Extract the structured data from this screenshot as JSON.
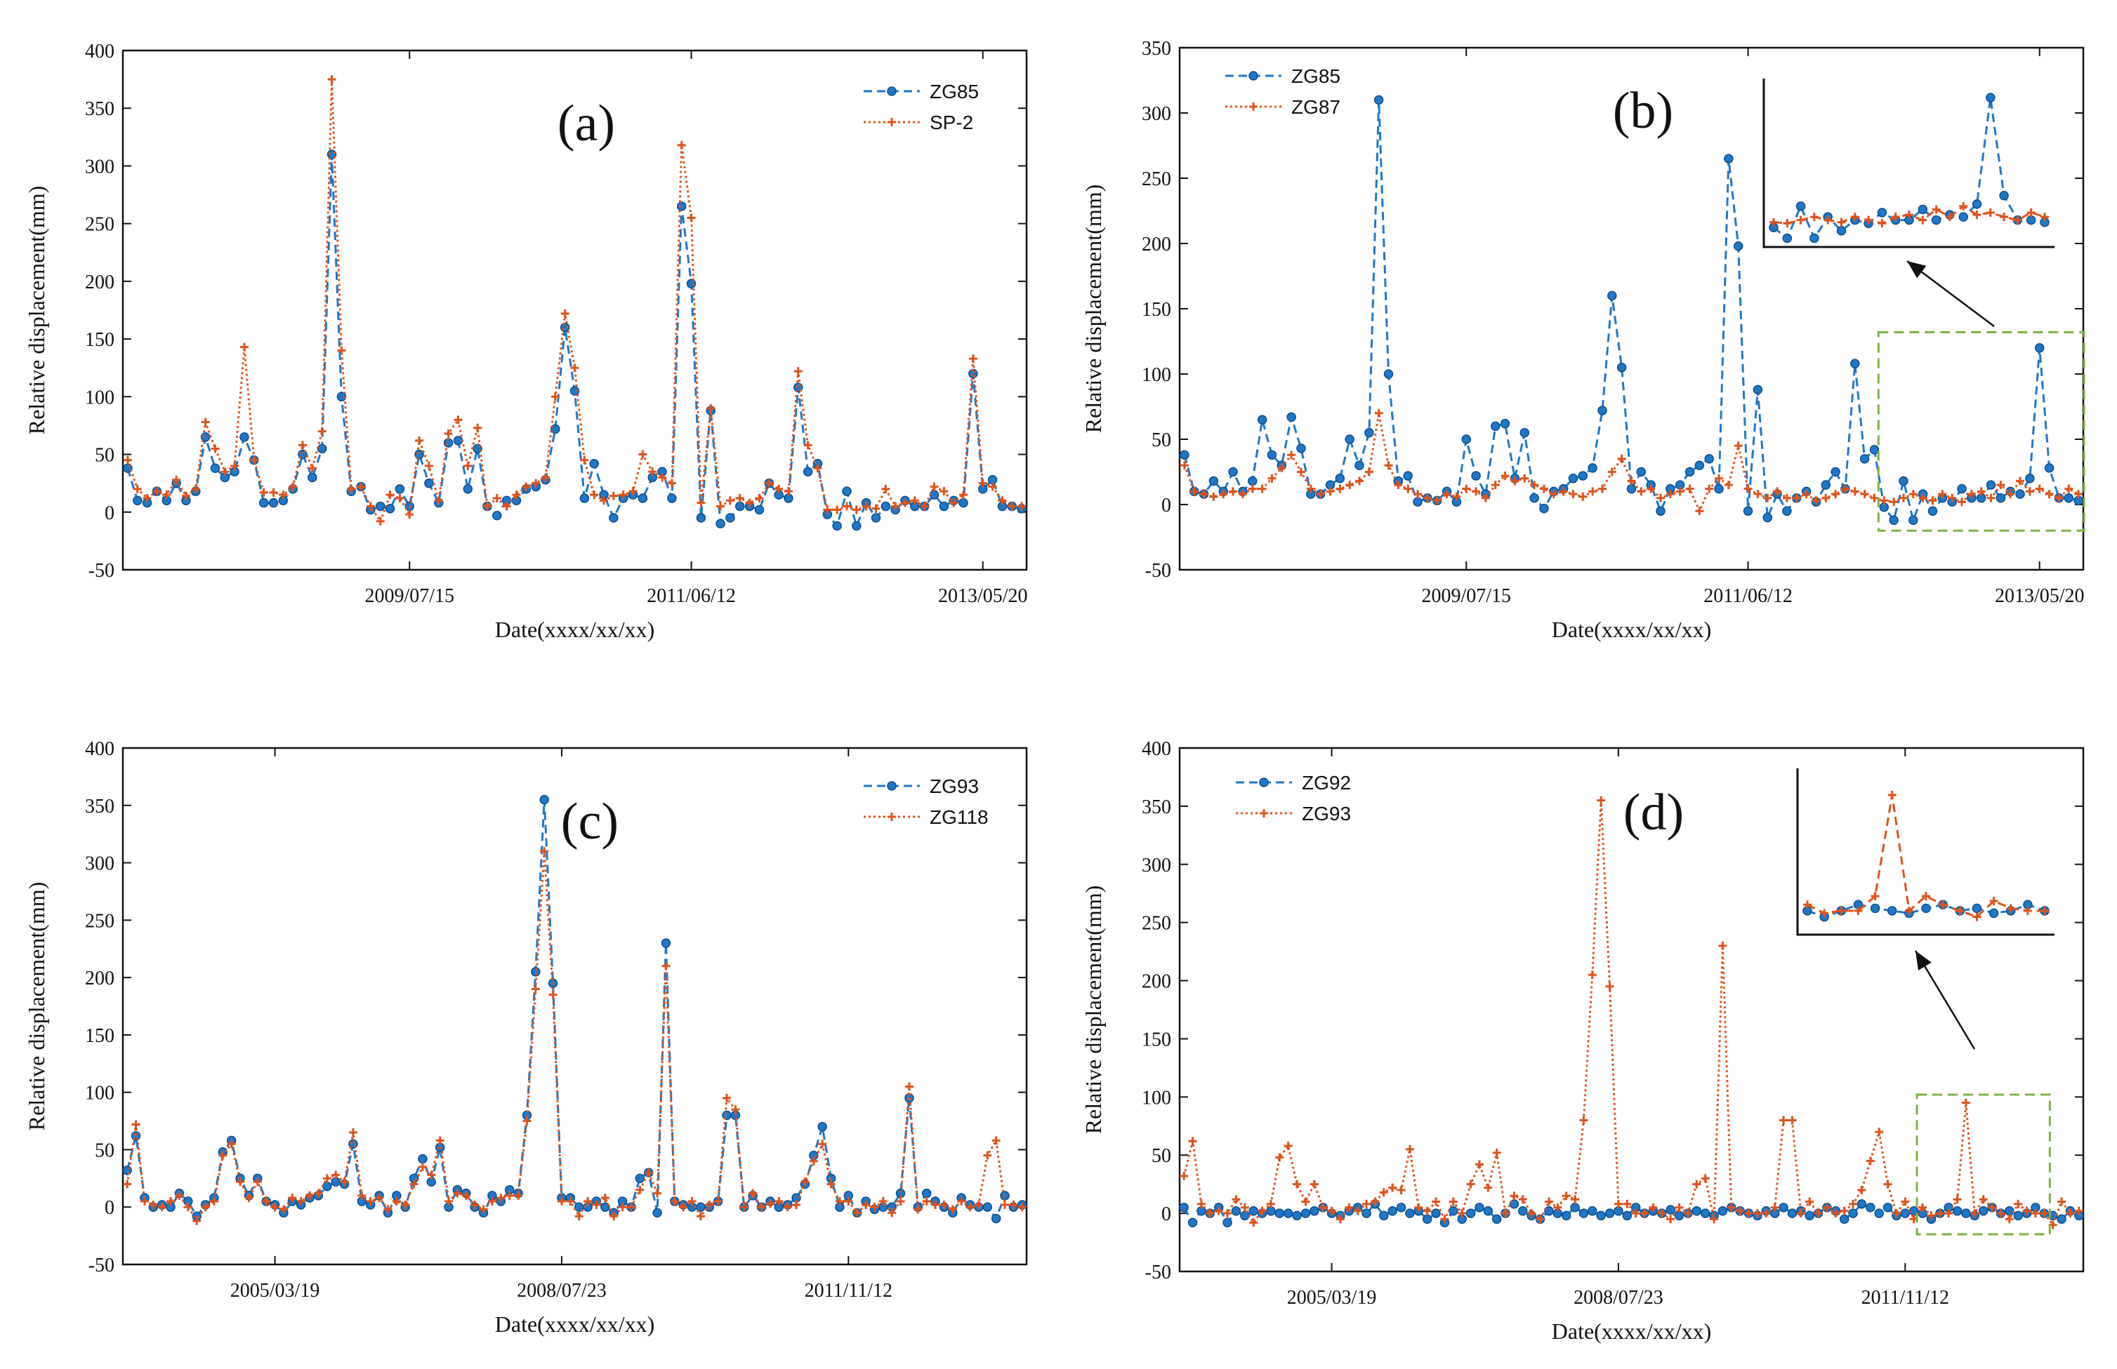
{
  "colors": {
    "blue": "#1f77c9",
    "orange": "#e0521a",
    "frame": "#111111",
    "zoom": "#7cb342"
  },
  "chart_data": [
    {
      "id": "a",
      "type": "line",
      "panel_label": "(a)",
      "xlabel": "Date(xxxx/xx/xx)",
      "ylabel": "Relative displacement(mm)",
      "ylim": [
        -50,
        400
      ],
      "yticks": [
        -50,
        0,
        50,
        100,
        150,
        200,
        250,
        300,
        350,
        400
      ],
      "xtick_labels": [
        {
          "label": "2009/07/15",
          "index": 29
        },
        {
          "label": "2011/06/12",
          "index": 58
        },
        {
          "label": "2013/05/20",
          "index": 88
        }
      ],
      "legend_position": "top-right",
      "grid": false,
      "series": [
        {
          "name": "ZG85",
          "style": "dashed-circle",
          "color": "blue",
          "values": [
            38,
            10,
            8,
            18,
            10,
            25,
            10,
            18,
            65,
            38,
            30,
            35,
            65,
            45,
            8,
            8,
            10,
            20,
            50,
            30,
            55,
            310,
            100,
            18,
            22,
            2,
            5,
            3,
            20,
            5,
            50,
            25,
            8,
            60,
            62,
            20,
            55,
            5,
            -3,
            10,
            10,
            20,
            22,
            28,
            72,
            160,
            105,
            12,
            42,
            15,
            -5,
            12,
            15,
            12,
            30,
            35,
            12,
            265,
            198,
            -5,
            88,
            -10,
            -5,
            5,
            5,
            2,
            25,
            15,
            12,
            108,
            35,
            42,
            -2,
            -12,
            18,
            -12,
            8,
            -5,
            5,
            2,
            10,
            5,
            5,
            15,
            5,
            10,
            8,
            120,
            20,
            28,
            5,
            5,
            3
          ]
        },
        {
          "name": "SP-2",
          "style": "dotted-plus",
          "color": "orange",
          "values": [
            45,
            20,
            12,
            18,
            15,
            28,
            14,
            20,
            78,
            55,
            35,
            40,
            143,
            45,
            17,
            17,
            15,
            22,
            58,
            38,
            70,
            375,
            140,
            20,
            22,
            5,
            -8,
            15,
            12,
            -2,
            62,
            40,
            10,
            68,
            80,
            40,
            73,
            5,
            12,
            5,
            15,
            22,
            25,
            30,
            100,
            172,
            125,
            45,
            15,
            10,
            14,
            15,
            18,
            50,
            35,
            30,
            25,
            318,
            255,
            8,
            90,
            5,
            10,
            12,
            8,
            12,
            25,
            20,
            18,
            122,
            58,
            38,
            2,
            2,
            5,
            2,
            5,
            3,
            20,
            5,
            8,
            10,
            5,
            22,
            18,
            8,
            15,
            133,
            25,
            22,
            10,
            5,
            5
          ]
        }
      ]
    },
    {
      "id": "b",
      "type": "line",
      "panel_label": "(b)",
      "xlabel": "Date(xxxx/xx/xx)",
      "ylabel": "Relative displacement(mm)",
      "ylim": [
        -50,
        350
      ],
      "yticks": [
        -50,
        0,
        50,
        100,
        150,
        200,
        250,
        300,
        350
      ],
      "xtick_labels": [
        {
          "label": "2009/07/15",
          "index": 29
        },
        {
          "label": "2011/06/12",
          "index": 58
        },
        {
          "label": "2013/05/20",
          "index": 88
        }
      ],
      "legend_position": "top-left",
      "grid": false,
      "has_zoom_inset": true,
      "series": [
        {
          "name": "ZG85",
          "style": "dashed-circle",
          "color": "blue",
          "values": [
            38,
            10,
            8,
            18,
            10,
            25,
            10,
            18,
            65,
            38,
            30,
            67,
            43,
            8,
            8,
            15,
            20,
            50,
            30,
            55,
            310,
            100,
            18,
            22,
            2,
            5,
            3,
            10,
            2,
            50,
            22,
            8,
            60,
            62,
            20,
            55,
            5,
            -3,
            10,
            12,
            20,
            22,
            28,
            72,
            160,
            105,
            12,
            25,
            15,
            -5,
            12,
            15,
            25,
            30,
            35,
            12,
            265,
            198,
            -5,
            88,
            -10,
            8,
            -5,
            5,
            10,
            2,
            15,
            25,
            12,
            108,
            35,
            42,
            -2,
            -12,
            18,
            -12,
            8,
            -5,
            5,
            2,
            12,
            5,
            5,
            15,
            5,
            10,
            8,
            20,
            120,
            28,
            5,
            5,
            3
          ]
        },
        {
          "name": "ZG87",
          "style": "dotted-plus",
          "color": "orange",
          "values": [
            30,
            10,
            8,
            6,
            8,
            10,
            8,
            12,
            12,
            20,
            28,
            38,
            25,
            12,
            8,
            10,
            12,
            15,
            18,
            25,
            70,
            30,
            15,
            12,
            8,
            5,
            3,
            8,
            6,
            12,
            10,
            5,
            15,
            22,
            18,
            20,
            15,
            12,
            8,
            10,
            8,
            6,
            10,
            12,
            25,
            35,
            18,
            10,
            12,
            5,
            8,
            10,
            12,
            -5,
            12,
            20,
            15,
            45,
            12,
            8,
            5,
            10,
            5,
            5,
            8,
            3,
            5,
            8,
            12,
            10,
            8,
            5,
            3,
            2,
            5,
            8,
            5,
            3,
            8,
            5,
            2,
            8,
            10,
            5,
            15,
            8,
            18,
            10,
            12,
            8,
            5,
            12,
            8
          ]
        }
      ]
    },
    {
      "id": "c",
      "type": "line",
      "panel_label": "(c)",
      "xlabel": "Date(xxxx/xx/xx)",
      "ylabel": "Relative displacement(mm)",
      "ylim": [
        -50,
        400
      ],
      "yticks": [
        -50,
        0,
        50,
        100,
        150,
        200,
        250,
        300,
        350,
        400
      ],
      "xtick_labels": [
        {
          "label": "2005/03/19",
          "index": 17
        },
        {
          "label": "2008/07/23",
          "index": 50
        },
        {
          "label": "2011/11/12",
          "index": 83
        }
      ],
      "legend_position": "top-right",
      "grid": false,
      "series": [
        {
          "name": "ZG93",
          "style": "dashed-circle",
          "color": "blue",
          "values": [
            32,
            62,
            8,
            0,
            2,
            0,
            12,
            5,
            -8,
            2,
            8,
            48,
            58,
            25,
            10,
            25,
            5,
            2,
            -5,
            5,
            2,
            8,
            10,
            18,
            22,
            20,
            55,
            5,
            2,
            10,
            -5,
            10,
            0,
            25,
            42,
            22,
            52,
            0,
            15,
            12,
            0,
            -5,
            10,
            5,
            15,
            12,
            80,
            205,
            355,
            195,
            8,
            8,
            0,
            0,
            5,
            0,
            -5,
            5,
            0,
            25,
            30,
            -5,
            230,
            5,
            2,
            0,
            0,
            0,
            5,
            80,
            80,
            0,
            10,
            0,
            5,
            0,
            2,
            8,
            20,
            45,
            70,
            25,
            0,
            10,
            -5,
            5,
            -2,
            0,
            0,
            12,
            95,
            0,
            12,
            5,
            0,
            -5,
            8,
            2,
            0,
            0,
            -10,
            10,
            0,
            2
          ]
        },
        {
          "name": "ZG118",
          "style": "dotted-plus",
          "color": "orange",
          "values": [
            20,
            72,
            5,
            2,
            0,
            5,
            10,
            0,
            -12,
            0,
            5,
            45,
            55,
            22,
            8,
            22,
            5,
            0,
            -2,
            8,
            5,
            10,
            12,
            25,
            28,
            22,
            65,
            10,
            5,
            8,
            -2,
            5,
            2,
            20,
            35,
            28,
            58,
            5,
            12,
            10,
            2,
            -2,
            5,
            8,
            10,
            10,
            75,
            190,
            310,
            185,
            5,
            5,
            -8,
            5,
            2,
            8,
            -8,
            0,
            0,
            15,
            30,
            12,
            210,
            5,
            0,
            5,
            -8,
            2,
            5,
            95,
            85,
            0,
            12,
            0,
            3,
            5,
            0,
            2,
            22,
            40,
            55,
            20,
            5,
            5,
            -5,
            2,
            0,
            5,
            -5,
            5,
            105,
            -2,
            5,
            2,
            2,
            -2,
            5,
            0,
            2,
            45,
            58,
            2,
            2,
            0
          ]
        }
      ]
    },
    {
      "id": "d",
      "type": "line",
      "panel_label": "(d)",
      "xlabel": "Date(xxxx/xx/xx)",
      "ylabel": "Relative displacement(mm)",
      "ylim": [
        -50,
        400
      ],
      "yticks": [
        -50,
        0,
        50,
        100,
        150,
        200,
        250,
        300,
        350,
        400
      ],
      "xtick_labels": [
        {
          "label": "2005/03/19",
          "index": 17
        },
        {
          "label": "2008/07/23",
          "index": 50
        },
        {
          "label": "2011/11/12",
          "index": 83
        }
      ],
      "legend_position": "top-left",
      "grid": false,
      "has_zoom_inset": true,
      "series": [
        {
          "name": "ZG92",
          "style": "dashed-circle",
          "color": "blue",
          "values": [
            5,
            -8,
            2,
            0,
            5,
            -8,
            2,
            -2,
            2,
            0,
            2,
            0,
            0,
            -2,
            0,
            2,
            5,
            0,
            -2,
            2,
            5,
            0,
            8,
            -2,
            2,
            5,
            0,
            2,
            -5,
            0,
            -8,
            2,
            -5,
            0,
            5,
            2,
            -5,
            0,
            8,
            2,
            -2,
            -5,
            2,
            0,
            -2,
            5,
            0,
            2,
            -2,
            0,
            2,
            -2,
            5,
            0,
            2,
            0,
            3,
            -2,
            0,
            2,
            0,
            -2,
            2,
            5,
            2,
            0,
            -2,
            2,
            0,
            5,
            0,
            2,
            -2,
            0,
            5,
            2,
            -5,
            0,
            8,
            5,
            0,
            5,
            -2,
            0,
            2,
            0,
            -5,
            0,
            5,
            2,
            0,
            -2,
            2,
            5,
            0,
            2,
            -2,
            0,
            5,
            0,
            -2,
            -5,
            2,
            -2
          ]
        },
        {
          "name": "ZG93",
          "style": "dotted-plus",
          "color": "orange",
          "values": [
            32,
            62,
            8,
            0,
            2,
            0,
            12,
            5,
            -8,
            2,
            8,
            48,
            58,
            25,
            10,
            25,
            5,
            2,
            -5,
            5,
            2,
            8,
            10,
            18,
            22,
            20,
            55,
            5,
            2,
            10,
            -5,
            10,
            0,
            25,
            42,
            22,
            52,
            0,
            15,
            12,
            0,
            -5,
            10,
            5,
            15,
            12,
            80,
            205,
            355,
            195,
            8,
            8,
            0,
            0,
            5,
            0,
            -5,
            5,
            0,
            25,
            30,
            -5,
            230,
            5,
            2,
            0,
            0,
            0,
            5,
            80,
            80,
            0,
            10,
            0,
            5,
            0,
            2,
            8,
            20,
            45,
            70,
            25,
            0,
            10,
            -5,
            5,
            -2,
            0,
            0,
            12,
            95,
            0,
            12,
            5,
            0,
            -5,
            8,
            2,
            0,
            0,
            -10,
            10,
            0,
            2
          ]
        }
      ]
    }
  ]
}
